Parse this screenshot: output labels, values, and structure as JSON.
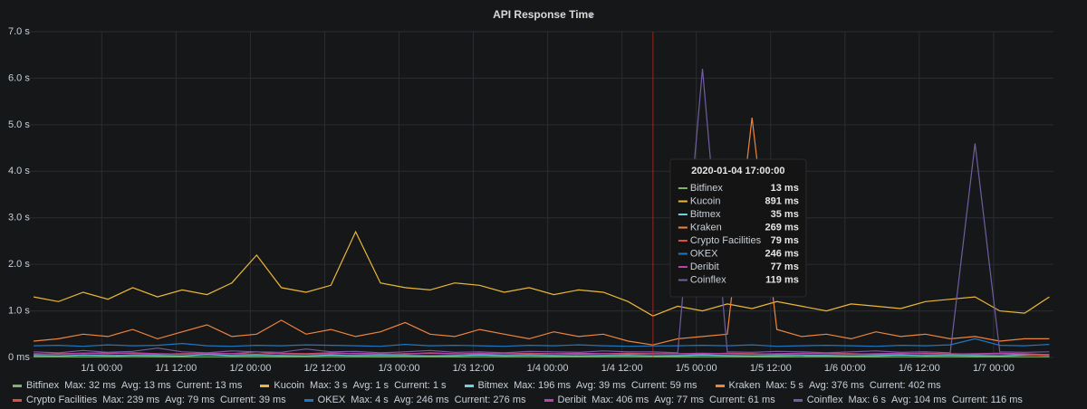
{
  "chart_data": {
    "type": "line",
    "title": "API Response Time",
    "x": [
      "2019-12-31T13:00",
      "2019-12-31T17:00",
      "2019-12-31T21:00",
      "2020-01-01T01:00",
      "2020-01-01T05:00",
      "2020-01-01T09:00",
      "2020-01-01T13:00",
      "2020-01-01T17:00",
      "2020-01-01T21:00",
      "2020-01-02T01:00",
      "2020-01-02T05:00",
      "2020-01-02T09:00",
      "2020-01-02T13:00",
      "2020-01-02T17:00",
      "2020-01-02T21:00",
      "2020-01-03T01:00",
      "2020-01-03T05:00",
      "2020-01-03T09:00",
      "2020-01-03T13:00",
      "2020-01-03T17:00",
      "2020-01-03T21:00",
      "2020-01-04T01:00",
      "2020-01-04T05:00",
      "2020-01-04T09:00",
      "2020-01-04T13:00",
      "2020-01-04T17:00",
      "2020-01-04T21:00",
      "2020-01-05T01:00",
      "2020-01-05T05:00",
      "2020-01-05T09:00",
      "2020-01-05T13:00",
      "2020-01-05T17:00",
      "2020-01-05T21:00",
      "2020-01-06T01:00",
      "2020-01-06T05:00",
      "2020-01-06T09:00",
      "2020-01-06T13:00",
      "2020-01-06T17:00",
      "2020-01-06T21:00",
      "2020-01-07T01:00",
      "2020-01-07T05:00",
      "2020-01-07T09:00"
    ],
    "xlim": [
      "2019-12-31T12:24",
      "2020-01-07T09:40"
    ],
    "xticks": [
      {
        "value": "2020-01-01T00:00",
        "label": "1/1 00:00"
      },
      {
        "value": "2020-01-01T12:00",
        "label": "1/1 12:00"
      },
      {
        "value": "2020-01-02T00:00",
        "label": "1/2 00:00"
      },
      {
        "value": "2020-01-02T12:00",
        "label": "1/2 12:00"
      },
      {
        "value": "2020-01-03T00:00",
        "label": "1/3 00:00"
      },
      {
        "value": "2020-01-03T12:00",
        "label": "1/3 12:00"
      },
      {
        "value": "2020-01-04T00:00",
        "label": "1/4 00:00"
      },
      {
        "value": "2020-01-04T12:00",
        "label": "1/4 12:00"
      },
      {
        "value": "2020-01-05T00:00",
        "label": "1/5 00:00"
      },
      {
        "value": "2020-01-05T12:00",
        "label": "1/5 12:00"
      },
      {
        "value": "2020-01-06T00:00",
        "label": "1/6 00:00"
      },
      {
        "value": "2020-01-06T12:00",
        "label": "1/6 12:00"
      },
      {
        "value": "2020-01-07T00:00",
        "label": "1/7 00:00"
      }
    ],
    "ylim": [
      0,
      7
    ],
    "yticks": [
      {
        "value": 0,
        "label": "0 ms"
      },
      {
        "value": 1,
        "label": "1.0 s"
      },
      {
        "value": 2,
        "label": "2.0 s"
      },
      {
        "value": 3,
        "label": "3.0 s"
      },
      {
        "value": 4,
        "label": "4.0 s"
      },
      {
        "value": 5,
        "label": "5.0 s"
      },
      {
        "value": 6,
        "label": "6.0 s"
      },
      {
        "value": 7,
        "label": "7.0 s"
      }
    ],
    "grid": true,
    "stat_labels": [
      "Max:",
      "Avg:",
      "Current:"
    ],
    "series": [
      {
        "name": "Bitfinex",
        "color": "#7eb26d",
        "stats": [
          "32 ms",
          "13 ms",
          "13 ms"
        ],
        "values": [
          0.013,
          0.014,
          0.012,
          0.013,
          0.015,
          0.013,
          0.012,
          0.013,
          0.014,
          0.013,
          0.012,
          0.013,
          0.016,
          0.013,
          0.012,
          0.014,
          0.013,
          0.012,
          0.013,
          0.014,
          0.013,
          0.012,
          0.013,
          0.014,
          0.013,
          0.013,
          0.012,
          0.013,
          0.014,
          0.013,
          0.012,
          0.013,
          0.015,
          0.013,
          0.012,
          0.013,
          0.014,
          0.013,
          0.012,
          0.013,
          0.014,
          0.013
        ]
      },
      {
        "name": "Kucoin",
        "color": "#eab839",
        "stats": [
          "3 s",
          "1 s",
          "1 s"
        ],
        "values": [
          1.3,
          1.2,
          1.4,
          1.25,
          1.5,
          1.3,
          1.45,
          1.35,
          1.6,
          2.2,
          1.5,
          1.4,
          1.55,
          2.7,
          1.6,
          1.5,
          1.45,
          1.6,
          1.55,
          1.4,
          1.5,
          1.35,
          1.45,
          1.4,
          1.2,
          0.891,
          1.1,
          1.0,
          1.15,
          1.05,
          1.2,
          1.1,
          1.0,
          1.15,
          1.1,
          1.05,
          1.2,
          1.25,
          1.3,
          1.0,
          0.95,
          1.3
        ]
      },
      {
        "name": "Bitmex",
        "color": "#6ed0e0",
        "stats": [
          "196 ms",
          "39 ms",
          "59 ms"
        ],
        "values": [
          0.04,
          0.035,
          0.05,
          0.04,
          0.045,
          0.04,
          0.035,
          0.06,
          0.04,
          0.045,
          0.04,
          0.035,
          0.05,
          0.04,
          0.045,
          0.04,
          0.035,
          0.04,
          0.05,
          0.04,
          0.045,
          0.04,
          0.035,
          0.04,
          0.045,
          0.035,
          0.04,
          0.05,
          0.04,
          0.035,
          0.04,
          0.045,
          0.04,
          0.035,
          0.04,
          0.05,
          0.04,
          0.045,
          0.04,
          0.035,
          0.05,
          0.06
        ]
      },
      {
        "name": "Kraken",
        "color": "#ef843c",
        "stats": [
          "5 s",
          "376 ms",
          "402 ms"
        ],
        "values": [
          0.35,
          0.4,
          0.5,
          0.45,
          0.6,
          0.4,
          0.55,
          0.7,
          0.45,
          0.5,
          0.8,
          0.5,
          0.6,
          0.45,
          0.55,
          0.75,
          0.5,
          0.45,
          0.6,
          0.5,
          0.4,
          0.55,
          0.45,
          0.5,
          0.35,
          0.269,
          0.4,
          0.45,
          0.5,
          5.15,
          0.6,
          0.45,
          0.5,
          0.4,
          0.55,
          0.45,
          0.5,
          0.4,
          0.45,
          0.35,
          0.4,
          0.4
        ]
      },
      {
        "name": "Crypto Facilities",
        "color": "#e24d42",
        "stats": [
          "239 ms",
          "79 ms",
          "39 ms"
        ],
        "values": [
          0.07,
          0.08,
          0.09,
          0.1,
          0.08,
          0.07,
          0.08,
          0.09,
          0.08,
          0.07,
          0.09,
          0.08,
          0.1,
          0.08,
          0.07,
          0.08,
          0.09,
          0.08,
          0.07,
          0.08,
          0.09,
          0.08,
          0.07,
          0.08,
          0.09,
          0.079,
          0.08,
          0.07,
          0.09,
          0.08,
          0.07,
          0.08,
          0.09,
          0.08,
          0.07,
          0.08,
          0.09,
          0.08,
          0.07,
          0.08,
          0.06,
          0.04
        ]
      },
      {
        "name": "OKEX",
        "color": "#1f78c1",
        "stats": [
          "4 s",
          "246 ms",
          "276 ms"
        ],
        "values": [
          0.25,
          0.26,
          0.24,
          0.27,
          0.25,
          0.26,
          0.3,
          0.25,
          0.24,
          0.26,
          0.25,
          0.27,
          0.26,
          0.25,
          0.24,
          0.28,
          0.25,
          0.26,
          0.25,
          0.24,
          0.26,
          0.25,
          0.27,
          0.25,
          0.24,
          0.246,
          0.25,
          0.26,
          0.25,
          0.27,
          0.24,
          0.25,
          0.26,
          0.25,
          0.24,
          0.26,
          0.25,
          0.27,
          0.4,
          0.26,
          0.25,
          0.28
        ]
      },
      {
        "name": "Deribit",
        "color": "#ba43a9",
        "stats": [
          "406 ms",
          "77 ms",
          "61 ms"
        ],
        "values": [
          0.08,
          0.07,
          0.09,
          0.08,
          0.1,
          0.08,
          0.07,
          0.09,
          0.08,
          0.12,
          0.08,
          0.07,
          0.08,
          0.09,
          0.08,
          0.07,
          0.1,
          0.08,
          0.09,
          0.08,
          0.07,
          0.08,
          0.09,
          0.08,
          0.07,
          0.077,
          0.08,
          0.09,
          0.08,
          0.07,
          0.08,
          0.09,
          0.08,
          0.07,
          0.08,
          0.09,
          0.08,
          0.07,
          0.08,
          0.09,
          0.08,
          0.06
        ]
      },
      {
        "name": "Coinflex",
        "color": "#705da0",
        "stats": [
          "6 s",
          "104 ms",
          "116 ms"
        ],
        "values": [
          0.12,
          0.1,
          0.15,
          0.11,
          0.13,
          0.2,
          0.12,
          0.1,
          0.14,
          0.12,
          0.11,
          0.18,
          0.12,
          0.13,
          0.1,
          0.12,
          0.15,
          0.11,
          0.12,
          0.1,
          0.13,
          0.12,
          0.11,
          0.14,
          0.12,
          0.119,
          0.1,
          6.2,
          0.12,
          0.11,
          0.13,
          0.12,
          0.1,
          0.12,
          0.14,
          0.11,
          0.12,
          0.1,
          4.6,
          0.12,
          0.11,
          0.12
        ]
      }
    ],
    "tooltip": {
      "title": "2020-01-04 17:00:00",
      "labels": [
        "13 ms",
        "891 ms",
        "35 ms",
        "269 ms",
        "79 ms",
        "246 ms",
        "77 ms",
        "119 ms"
      ]
    }
  }
}
